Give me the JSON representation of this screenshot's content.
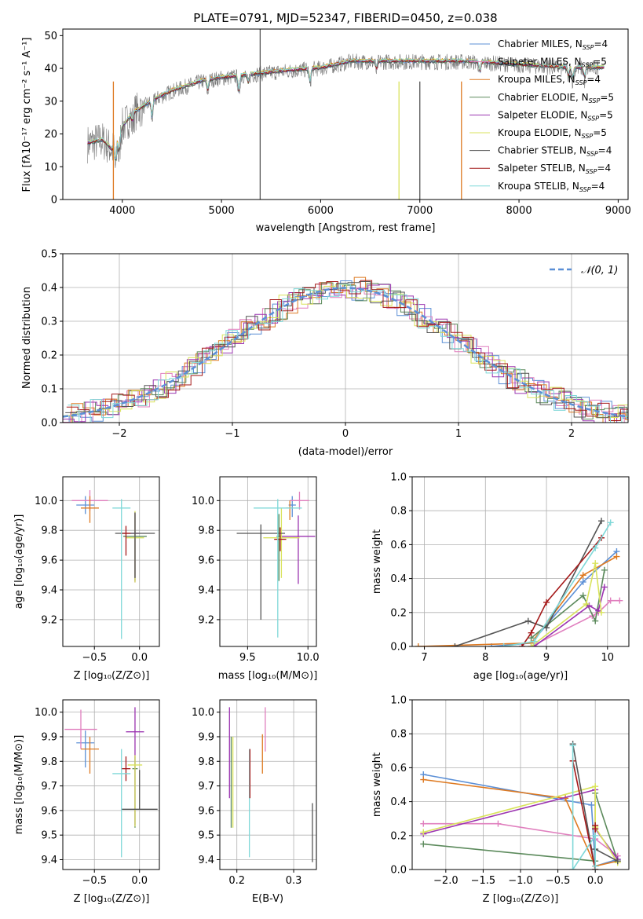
{
  "colors": {
    "Chabrier MILES": "#5b8fd6",
    "Salpeter MILES": "#e07fbe",
    "Kroupa MILES": "#de7a22",
    "Chabrier ELODIE": "#5c8a5c",
    "Salpeter ELODIE": "#9b34b0",
    "Kroupa ELODIE": "#d9e35c",
    "Chabrier STELIB": "#555555",
    "Salpeter STELIB": "#a41818",
    "Kroupa STELIB": "#7fd8d8"
  },
  "chart_data": [
    {
      "id": "spectrum",
      "type": "line",
      "title": "PLATE=0791, MJD=52347, FIBERID=0450, z=0.038",
      "xlabel": "wavelength [Angstrom, rest frame]",
      "ylabel": "Flux [fλ10⁻¹⁷ erg cm⁻² s⁻¹ A⁻¹]",
      "xlim": [
        3400,
        9100
      ],
      "ylim": [
        0,
        52
      ],
      "xticks": [
        4000,
        5000,
        6000,
        7000,
        8000,
        9000
      ],
      "yticks": [
        0,
        10,
        20,
        30,
        40,
        50
      ],
      "legend_position": "top-right",
      "continuum": [
        [
          3650,
          17
        ],
        [
          3800,
          18
        ],
        [
          3900,
          15
        ],
        [
          4000,
          22
        ],
        [
          4100,
          26
        ],
        [
          4300,
          30
        ],
        [
          4500,
          33
        ],
        [
          4800,
          36
        ],
        [
          5000,
          37
        ],
        [
          5300,
          38
        ],
        [
          5600,
          39
        ],
        [
          6000,
          40
        ],
        [
          6300,
          42
        ],
        [
          6600,
          42
        ],
        [
          7000,
          42
        ],
        [
          7500,
          42
        ],
        [
          8000,
          41
        ],
        [
          8500,
          40
        ],
        [
          8800,
          40
        ]
      ],
      "features": [
        [
          3933,
          -8
        ],
        [
          3968,
          -7
        ],
        [
          4102,
          -3
        ],
        [
          4300,
          -6
        ],
        [
          4861,
          -4
        ],
        [
          5175,
          -6
        ],
        [
          5270,
          -3
        ],
        [
          5893,
          -5
        ],
        [
          6563,
          -3
        ],
        [
          7605,
          -4
        ],
        [
          8498,
          -3
        ],
        [
          8542,
          -4
        ],
        [
          8662,
          -4
        ]
      ],
      "series": [
        {
          "name": "Chabrier MILES",
          "legend": "Chabrier MILES, N",
          "n": "=4"
        },
        {
          "name": "Salpeter MILES",
          "legend": "Salpeter MILES, N",
          "n": "=5"
        },
        {
          "name": "Kroupa MILES",
          "legend": "Kroupa MILES, N",
          "n": "=4"
        },
        {
          "name": "Chabrier ELODIE",
          "legend": "Chabrier ELODIE, N",
          "n": "=5"
        },
        {
          "name": "Salpeter ELODIE",
          "legend": "Salpeter ELODIE, N",
          "n": "=5"
        },
        {
          "name": "Kroupa ELODIE",
          "legend": "Kroupa ELODIE, N",
          "n": "=5"
        },
        {
          "name": "Chabrier STELIB",
          "legend": "Chabrier STELIB, N",
          "n": "=4"
        },
        {
          "name": "Salpeter STELIB",
          "legend": "Salpeter STELIB, N",
          "n": "=4"
        },
        {
          "name": "Kroupa STELIB",
          "legend": "Kroupa STELIB, N",
          "n": "=4"
        }
      ],
      "legend_sub": "SSP"
    },
    {
      "id": "residuals",
      "type": "line",
      "xlabel": "(data-model)/error",
      "ylabel": "Normed distribution",
      "xlim": [
        -2.5,
        2.5
      ],
      "ylim": [
        0,
        0.5
      ],
      "xticks": [
        -2,
        -1,
        0,
        1,
        2
      ],
      "xtick_labels": [
        "−2",
        "−1",
        "0",
        "1",
        "2"
      ],
      "yticks": [
        0.0,
        0.1,
        0.2,
        0.3,
        0.4,
        0.5
      ],
      "ytick_labels": [
        "0.0",
        "0.1",
        "0.2",
        "0.3",
        "0.4",
        "0.5"
      ],
      "grid": true,
      "legend_position": "top-right",
      "gaussian_label": "𝒩(0, 1)",
      "bin_width": 0.1
    },
    {
      "id": "age-Z",
      "type": "scatter",
      "xlabel": "Z [log₁₀(Z/Z⊙)]",
      "ylabel": "age  [log₁₀(age/yr)]",
      "xlim": [
        -0.85,
        0.22
      ],
      "ylim": [
        9.02,
        10.16
      ],
      "xticks": [
        -0.5,
        0.0
      ],
      "xtick_labels": [
        "−0.5",
        "0.0"
      ],
      "yticks": [
        9.2,
        9.4,
        9.6,
        9.8,
        10.0
      ],
      "ytick_labels": [
        "9.2",
        "9.4",
        "9.6",
        "9.8",
        "10.0"
      ],
      "grid": true,
      "points": [
        {
          "series": "Chabrier MILES",
          "x": -0.6,
          "y": 9.97,
          "xerr": 0.1,
          "yerr": [
            0.06,
            0.06
          ]
        },
        {
          "series": "Salpeter MILES",
          "x": -0.55,
          "y": 10.0,
          "xerr": 0.2,
          "yerr": [
            0.07,
            0.07
          ]
        },
        {
          "series": "Kroupa MILES",
          "x": -0.55,
          "y": 9.95,
          "xerr": 0.1,
          "yerr": [
            0.1,
            0.08
          ]
        },
        {
          "series": "Chabrier ELODIE",
          "x": -0.05,
          "y": 9.76,
          "xerr": 0.13,
          "yerr": [
            0.3,
            0.15
          ]
        },
        {
          "series": "Salpeter ELODIE",
          "x": -0.05,
          "y": 9.78,
          "xerr": 0.05,
          "yerr": [
            0.33,
            0.14
          ]
        },
        {
          "series": "Kroupa ELODIE",
          "x": -0.05,
          "y": 9.75,
          "xerr": 0.1,
          "yerr": [
            0.3,
            0.18
          ]
        },
        {
          "series": "Chabrier STELIB",
          "x": -0.05,
          "y": 9.78,
          "xerr": 0.22,
          "yerr": [
            0.3,
            0.14
          ]
        },
        {
          "series": "Salpeter STELIB",
          "x": -0.15,
          "y": 9.78,
          "xerr": 0.05,
          "yerr": [
            0.15,
            0.05
          ]
        },
        {
          "series": "Kroupa STELIB",
          "x": -0.2,
          "y": 9.95,
          "xerr": 0.1,
          "yerr": [
            0.88,
            0.06
          ]
        }
      ]
    },
    {
      "id": "age-mass",
      "type": "scatter",
      "xlabel": "mass [log₁₀(M/M⊙)]",
      "xlim": [
        9.27,
        10.07
      ],
      "ylim": [
        9.02,
        10.16
      ],
      "xticks": [
        9.5,
        10.0
      ],
      "xtick_labels": [
        "9.5",
        "10.0"
      ],
      "yticks": [
        9.2,
        9.4,
        9.6,
        9.8,
        10.0
      ],
      "ytick_labels": [
        "9.2",
        "9.4",
        "9.6",
        "9.8",
        "10.0"
      ],
      "grid": true,
      "points": [
        {
          "series": "Chabrier MILES",
          "x": 9.87,
          "y": 9.97,
          "xerr": 0.03,
          "yerr": [
            0.08,
            0.06
          ]
        },
        {
          "series": "Salpeter MILES",
          "x": 9.93,
          "y": 10.0,
          "xerr": 0.08,
          "yerr": [
            0.06,
            0.06
          ]
        },
        {
          "series": "Kroupa MILES",
          "x": 9.85,
          "y": 9.95,
          "xerr": 0.03,
          "yerr": [
            0.08,
            0.05
          ]
        },
        {
          "series": "Chabrier ELODIE",
          "x": 9.76,
          "y": 9.76,
          "xerr": 0.02,
          "yerr": [
            0.3,
            0.15
          ]
        },
        {
          "series": "Salpeter ELODIE",
          "x": 9.92,
          "y": 9.76,
          "xerr": 0.14,
          "yerr": [
            0.32,
            0.14
          ]
        },
        {
          "series": "Kroupa ELODIE",
          "x": 9.78,
          "y": 9.75,
          "xerr": 0.15,
          "yerr": [
            0.27,
            0.2
          ]
        },
        {
          "series": "Chabrier STELIB",
          "x": 9.61,
          "y": 9.78,
          "xerr": 0.2,
          "yerr": [
            0.58,
            0.06
          ]
        },
        {
          "series": "Salpeter STELIB",
          "x": 9.77,
          "y": 9.74,
          "xerr": 0.05,
          "yerr": [
            0.08,
            0.08
          ]
        },
        {
          "series": "Kroupa STELIB",
          "x": 9.75,
          "y": 9.95,
          "xerr": 0.2,
          "yerr": [
            0.87,
            0.06
          ]
        }
      ]
    },
    {
      "id": "weight-age",
      "type": "line",
      "xlabel": "age  [log₁₀(age/yr)]",
      "ylabel": "mass weight",
      "xlim": [
        6.8,
        10.35
      ],
      "ylim": [
        0.0,
        1.0
      ],
      "xticks": [
        7,
        8,
        9,
        10
      ],
      "yticks": [
        0.0,
        0.2,
        0.4,
        0.6,
        0.8,
        1.0
      ],
      "ytick_labels": [
        "0.0",
        "0.2",
        "0.4",
        "0.6",
        "0.8",
        "1.0"
      ],
      "grid": true,
      "series": [
        {
          "series": "Chabrier MILES",
          "x": [
            8.1,
            8.75,
            9.6,
            10.15
          ],
          "y": [
            0.0,
            0.02,
            0.38,
            0.56
          ]
        },
        {
          "series": "Salpeter MILES",
          "x": [
            8.75,
            9.75,
            9.85,
            10.05,
            10.2
          ],
          "y": [
            0.0,
            0.18,
            0.2,
            0.27,
            0.27
          ]
        },
        {
          "series": "Kroupa MILES",
          "x": [
            6.9,
            8.75,
            9.6,
            10.15
          ],
          "y": [
            0.0,
            0.02,
            0.42,
            0.53
          ]
        },
        {
          "series": "Chabrier ELODIE",
          "x": [
            8.75,
            9.6,
            9.8,
            9.95
          ],
          "y": [
            0.05,
            0.3,
            0.15,
            0.45
          ]
        },
        {
          "series": "Salpeter ELODIE",
          "x": [
            8.8,
            9.7,
            9.85,
            9.95
          ],
          "y": [
            0.0,
            0.24,
            0.21,
            0.35
          ]
        },
        {
          "series": "Kroupa ELODIE",
          "x": [
            8.75,
            9.65,
            9.8,
            9.9
          ],
          "y": [
            0.0,
            0.25,
            0.49,
            0.2
          ]
        },
        {
          "series": "Chabrier STELIB",
          "x": [
            7.5,
            8.7,
            9.0,
            9.9
          ],
          "y": [
            0.0,
            0.15,
            0.11,
            0.74
          ]
        },
        {
          "series": "Salpeter STELIB",
          "x": [
            8.6,
            8.75,
            9.0,
            9.9
          ],
          "y": [
            0.0,
            0.08,
            0.26,
            0.64
          ]
        },
        {
          "series": "Kroupa STELIB",
          "x": [
            8.3,
            8.8,
            9.8,
            10.05
          ],
          "y": [
            0.0,
            0.03,
            0.58,
            0.73
          ]
        }
      ]
    },
    {
      "id": "mass-Z",
      "type": "scatter",
      "xlabel": "Z [log₁₀(Z/Z⊙)]",
      "ylabel": "mass [log₁₀(M/M⊙)]",
      "xlim": [
        -0.85,
        0.22
      ],
      "ylim": [
        9.36,
        10.05
      ],
      "xticks": [
        -0.5,
        0.0
      ],
      "xtick_labels": [
        "−0.5",
        "0.0"
      ],
      "yticks": [
        9.4,
        9.5,
        9.6,
        9.7,
        9.8,
        9.9,
        10.0
      ],
      "ytick_labels": [
        "9.4",
        "9.5",
        "9.6",
        "9.7",
        "9.8",
        "9.9",
        "10.0"
      ],
      "grid": true,
      "points": [
        {
          "series": "Chabrier MILES",
          "x": -0.6,
          "y": 9.875,
          "xerr": 0.1,
          "yerr": [
            0.1,
            0.05
          ]
        },
        {
          "series": "Salpeter MILES",
          "x": -0.65,
          "y": 9.93,
          "xerr": 0.18,
          "yerr": [
            0.08,
            0.08
          ]
        },
        {
          "series": "Kroupa MILES",
          "x": -0.55,
          "y": 9.85,
          "xerr": 0.1,
          "yerr": [
            0.1,
            0.05
          ]
        },
        {
          "series": "Chabrier ELODIE",
          "x": -0.05,
          "y": 9.77,
          "xerr": 0.03,
          "yerr": [
            0.24,
            0.05
          ]
        },
        {
          "series": "Salpeter ELODIE",
          "x": -0.05,
          "y": 9.92,
          "xerr": 0.1,
          "yerr": [
            0.38,
            0.1
          ]
        },
        {
          "series": "Kroupa ELODIE",
          "x": -0.05,
          "y": 9.785,
          "xerr": 0.08,
          "yerr": [
            0.25,
            0.04
          ]
        },
        {
          "series": "Chabrier STELIB",
          "x": 0.0,
          "y": 9.605,
          "xerr": 0.2,
          "yerr": [
            0.0,
            0.16
          ]
        },
        {
          "series": "Salpeter STELIB",
          "x": -0.15,
          "y": 9.77,
          "xerr": 0.05,
          "yerr": [
            0.05,
            0.05
          ]
        },
        {
          "series": "Kroupa STELIB",
          "x": -0.2,
          "y": 9.75,
          "xerr": 0.1,
          "yerr": [
            0.34,
            0.1
          ]
        }
      ]
    },
    {
      "id": "mass-ebv",
      "type": "scatter",
      "xlabel": "E(B-V)",
      "xlim": [
        0.17,
        0.34
      ],
      "ylim": [
        9.36,
        10.05
      ],
      "xticks": [
        0.2,
        0.3
      ],
      "xtick_labels": [
        "0.2",
        "0.3"
      ],
      "yticks": [
        9.4,
        9.5,
        9.6,
        9.7,
        9.8,
        9.9,
        10.0
      ],
      "ytick_labels": [
        "9.4",
        "9.5",
        "9.6",
        "9.7",
        "9.8",
        "9.9",
        "10.0"
      ],
      "grid": true,
      "points": [
        {
          "series": "Salpeter ELODIE",
          "x": 0.187,
          "y": 9.83,
          "yerr": [
            0.18,
            0.19
          ]
        },
        {
          "series": "Chabrier ELODIE",
          "x": 0.19,
          "y": 9.72,
          "yerr": [
            0.19,
            0.18
          ]
        },
        {
          "series": "Kroupa ELODIE",
          "x": 0.193,
          "y": 9.72,
          "yerr": [
            0.19,
            0.18
          ]
        },
        {
          "series": "Kroupa STELIB",
          "x": 0.222,
          "y": 9.63,
          "yerr": [
            0.22,
            0.22
          ]
        },
        {
          "series": "Salpeter STELIB",
          "x": 0.223,
          "y": 9.75,
          "yerr": [
            0.1,
            0.1
          ]
        },
        {
          "series": "Kroupa MILES",
          "x": 0.245,
          "y": 9.83,
          "yerr": [
            0.08,
            0.08
          ]
        },
        {
          "series": "Salpeter MILES",
          "x": 0.25,
          "y": 9.92,
          "yerr": [
            0.08,
            0.1
          ]
        },
        {
          "series": "Chabrier STELIB",
          "x": 0.333,
          "y": 9.51,
          "yerr": [
            0.12,
            0.12
          ]
        }
      ]
    },
    {
      "id": "weight-Z",
      "type": "line",
      "xlabel": "Z [log₁₀(Z/Z⊙)]",
      "ylabel": "mass weight",
      "xlim": [
        -2.45,
        0.45
      ],
      "ylim": [
        0.0,
        1.0
      ],
      "xticks": [
        -2.0,
        -1.5,
        -1.0,
        -0.5,
        0.0
      ],
      "xtick_labels": [
        "−2.0",
        "−1.5",
        "−1.0",
        "−0.5",
        "0.0"
      ],
      "yticks": [
        0.0,
        0.2,
        0.4,
        0.6,
        0.8,
        1.0
      ],
      "ytick_labels": [
        "0.0",
        "0.2",
        "0.4",
        "0.6",
        "0.8",
        "1.0"
      ],
      "grid": true,
      "series": [
        {
          "series": "Chabrier MILES",
          "x": [
            -2.3,
            -0.05,
            0.0,
            0.3
          ],
          "y": [
            0.56,
            0.38,
            0.02,
            0.06
          ]
        },
        {
          "series": "Salpeter MILES",
          "x": [
            -2.3,
            -1.3,
            0.0,
            0.3
          ],
          "y": [
            0.27,
            0.27,
            0.18,
            0.08
          ]
        },
        {
          "series": "Kroupa MILES",
          "x": [
            -2.3,
            -0.4,
            0.0,
            0.3
          ],
          "y": [
            0.53,
            0.42,
            0.02,
            0.05
          ]
        },
        {
          "series": "Chabrier ELODIE",
          "x": [
            -2.3,
            0.0,
            0.0,
            0.3
          ],
          "y": [
            0.15,
            0.05,
            0.45,
            0.05
          ]
        },
        {
          "series": "Salpeter ELODIE",
          "x": [
            -2.3,
            0.0,
            0.0,
            0.3
          ],
          "y": [
            0.21,
            0.47,
            0.24,
            0.06
          ]
        },
        {
          "series": "Kroupa ELODIE",
          "x": [
            -2.3,
            0.0,
            0.0,
            0.3
          ],
          "y": [
            0.22,
            0.49,
            0.25,
            0.04
          ]
        },
        {
          "series": "Chabrier STELIB",
          "x": [
            -0.3,
            0.0,
            0.0,
            0.3
          ],
          "y": [
            0.74,
            0.0,
            0.12,
            0.05
          ]
        },
        {
          "series": "Salpeter STELIB",
          "x": [
            -0.3,
            0.0,
            0.0,
            0.0
          ],
          "y": [
            0.64,
            0.0,
            0.26,
            0.24
          ]
        },
        {
          "series": "Kroupa STELIB",
          "x": [
            -0.3,
            -0.3,
            0.0,
            0.0
          ],
          "y": [
            0.73,
            0.0,
            0.2,
            0.02
          ]
        }
      ]
    }
  ]
}
